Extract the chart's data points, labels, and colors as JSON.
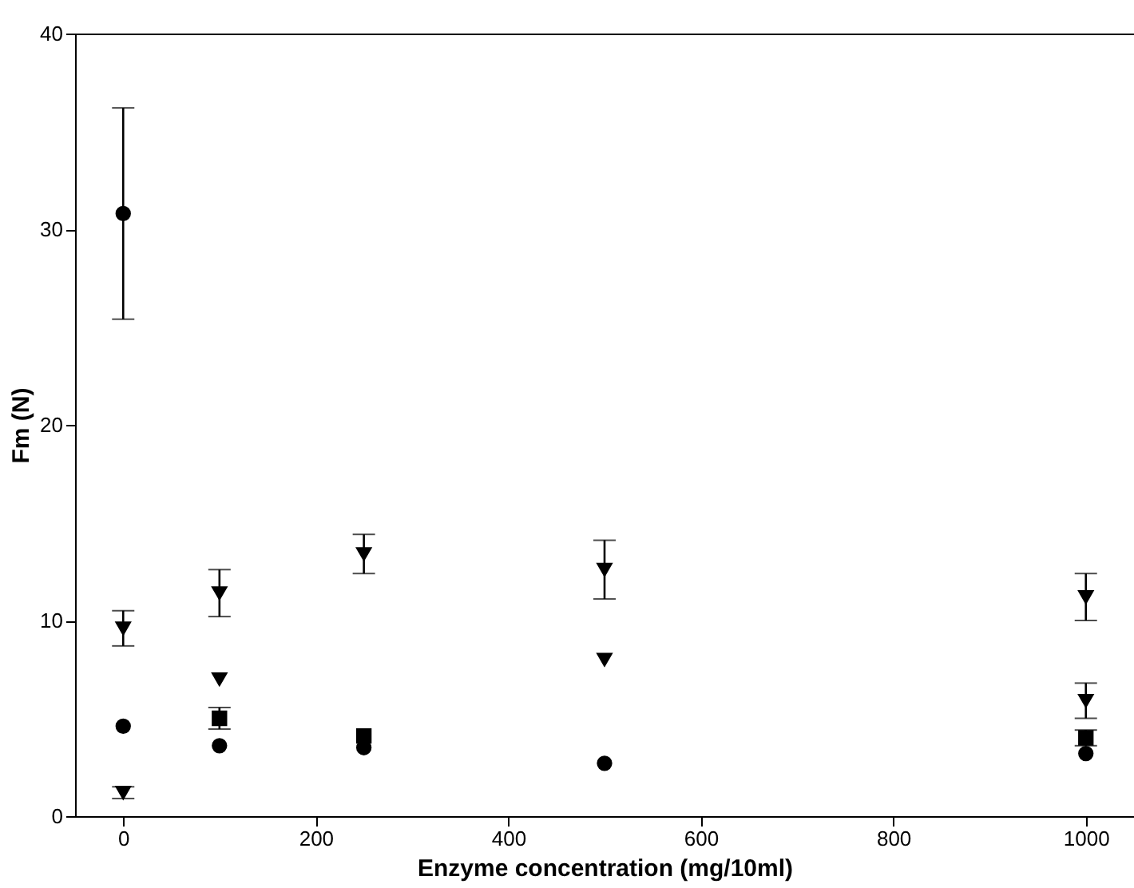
{
  "chart_data": {
    "type": "scatter",
    "xlabel": "Enzyme concentration (mg/10ml)",
    "ylabel": "Fm (N)",
    "x": [
      0,
      100,
      250,
      500,
      1000
    ],
    "xlim": [
      -50,
      1050
    ],
    "ylim": [
      0,
      40
    ],
    "xticks": [
      0,
      200,
      400,
      600,
      800,
      1000
    ],
    "yticks": [
      0,
      10,
      20,
      30,
      40
    ],
    "grid": false,
    "series": [
      {
        "color": "#000000",
        "marker": "circle",
        "values": [
          30.8,
          null,
          null,
          null,
          null
        ],
        "errors": [
          5.4,
          null,
          null,
          null,
          null
        ]
      },
      {
        "color": "#000000",
        "marker": "triangle",
        "values": [
          9.6,
          7.0,
          null,
          8.0,
          5.9
        ],
        "errors": [
          0.9,
          null,
          null,
          null,
          0.9
        ]
      },
      {
        "color": "#000000",
        "marker": "circle",
        "values": [
          4.6,
          3.6,
          3.5,
          2.7,
          3.2
        ],
        "errors": [
          null,
          null,
          null,
          null,
          null
        ]
      },
      {
        "color": "#000000",
        "marker": "triangle",
        "values": [
          1.2,
          11.4,
          13.4,
          12.6,
          11.2
        ],
        "errors": [
          0.3,
          1.2,
          1.0,
          1.5,
          1.2
        ]
      },
      {
        "color": "#000000",
        "marker": "square",
        "values": [
          null,
          5.0,
          4.1,
          null,
          4.0
        ],
        "errors": [
          null,
          0.55,
          null,
          null,
          0.4
        ]
      }
    ]
  }
}
